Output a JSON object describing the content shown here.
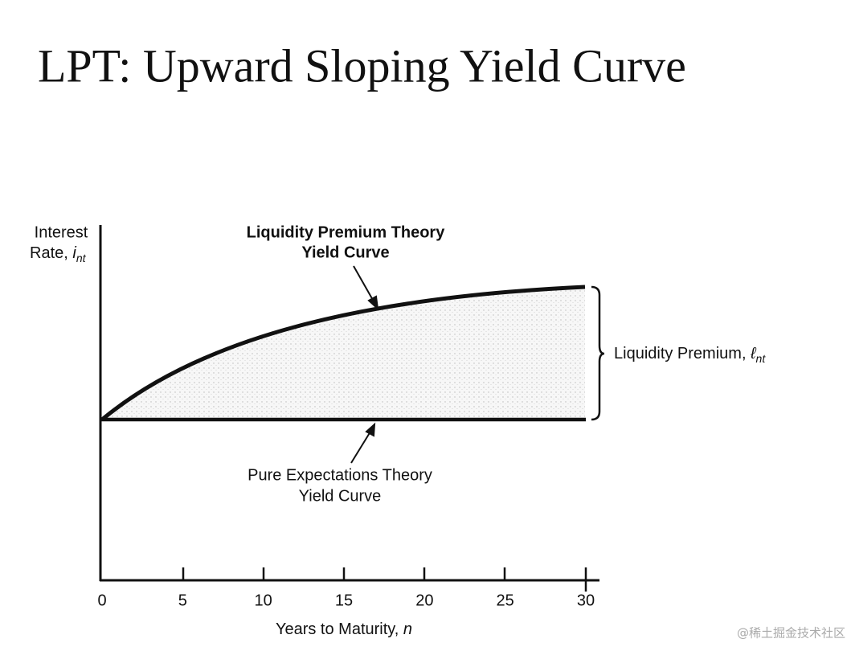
{
  "header": {
    "title": "LPT: Upward Sloping Yield Curve"
  },
  "diagram": {
    "y_axis_label": {
      "line1": "Interest",
      "line2": "Rate,",
      "symbol": "i",
      "subscript": "nt"
    },
    "x_axis_label": {
      "text": "Years to Maturity,",
      "symbol": "n"
    },
    "x_ticks": [
      "0",
      "5",
      "10",
      "15",
      "20",
      "25",
      "30"
    ],
    "upper_curve_label": {
      "line1": "Liquidity Premium Theory",
      "line2": "Yield Curve"
    },
    "lower_curve_label": {
      "line1": "Pure Expectations Theory",
      "line2": "Yield Curve"
    },
    "premium_label": {
      "text": "Liquidity Premium,",
      "symbol": "ℓ",
      "subscript": "nt"
    }
  },
  "watermark": "@稀土掘金技术社区"
}
